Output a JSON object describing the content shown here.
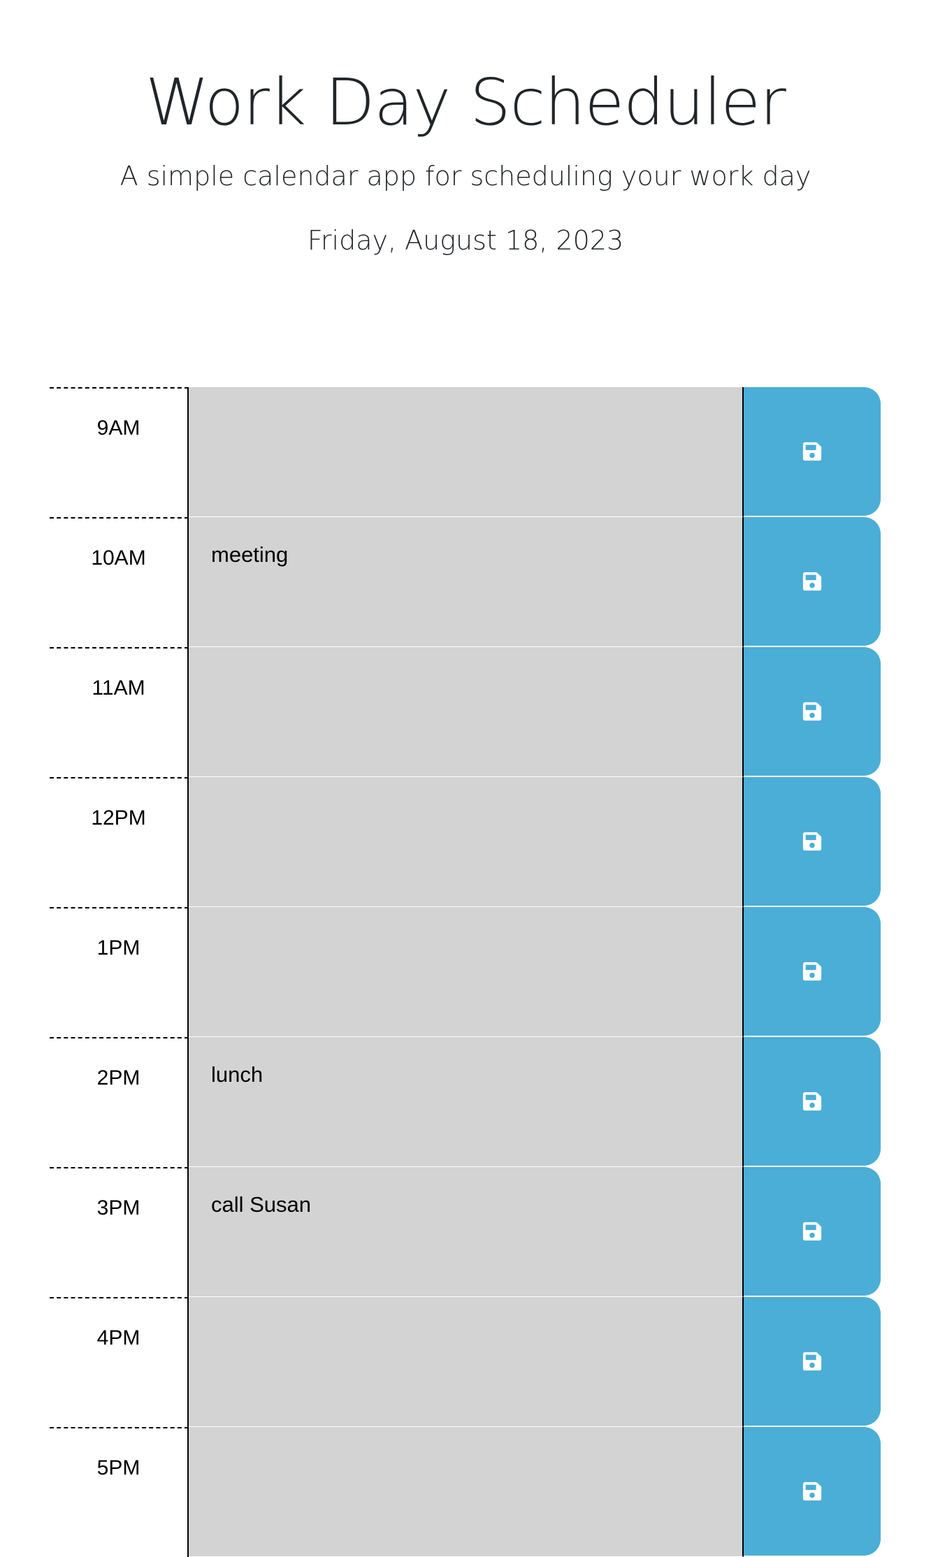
{
  "header": {
    "title": "Work Day Scheduler",
    "lead": "A simple calendar app for scheduling your work day",
    "current_day": "Friday, August 18, 2023"
  },
  "colors": {
    "past": "#d3d3d3",
    "save_button": "#4aaed6",
    "save_icon": "#ffffff"
  },
  "schedule": {
    "rows": [
      {
        "hour": "9AM",
        "text": ""
      },
      {
        "hour": "10AM",
        "text": "meeting"
      },
      {
        "hour": "11AM",
        "text": ""
      },
      {
        "hour": "12PM",
        "text": ""
      },
      {
        "hour": "1PM",
        "text": ""
      },
      {
        "hour": "2PM",
        "text": "lunch"
      },
      {
        "hour": "3PM",
        "text": "call Susan"
      },
      {
        "hour": "4PM",
        "text": ""
      },
      {
        "hour": "5PM",
        "text": ""
      }
    ],
    "save_icon": "floppy-disk-icon"
  }
}
